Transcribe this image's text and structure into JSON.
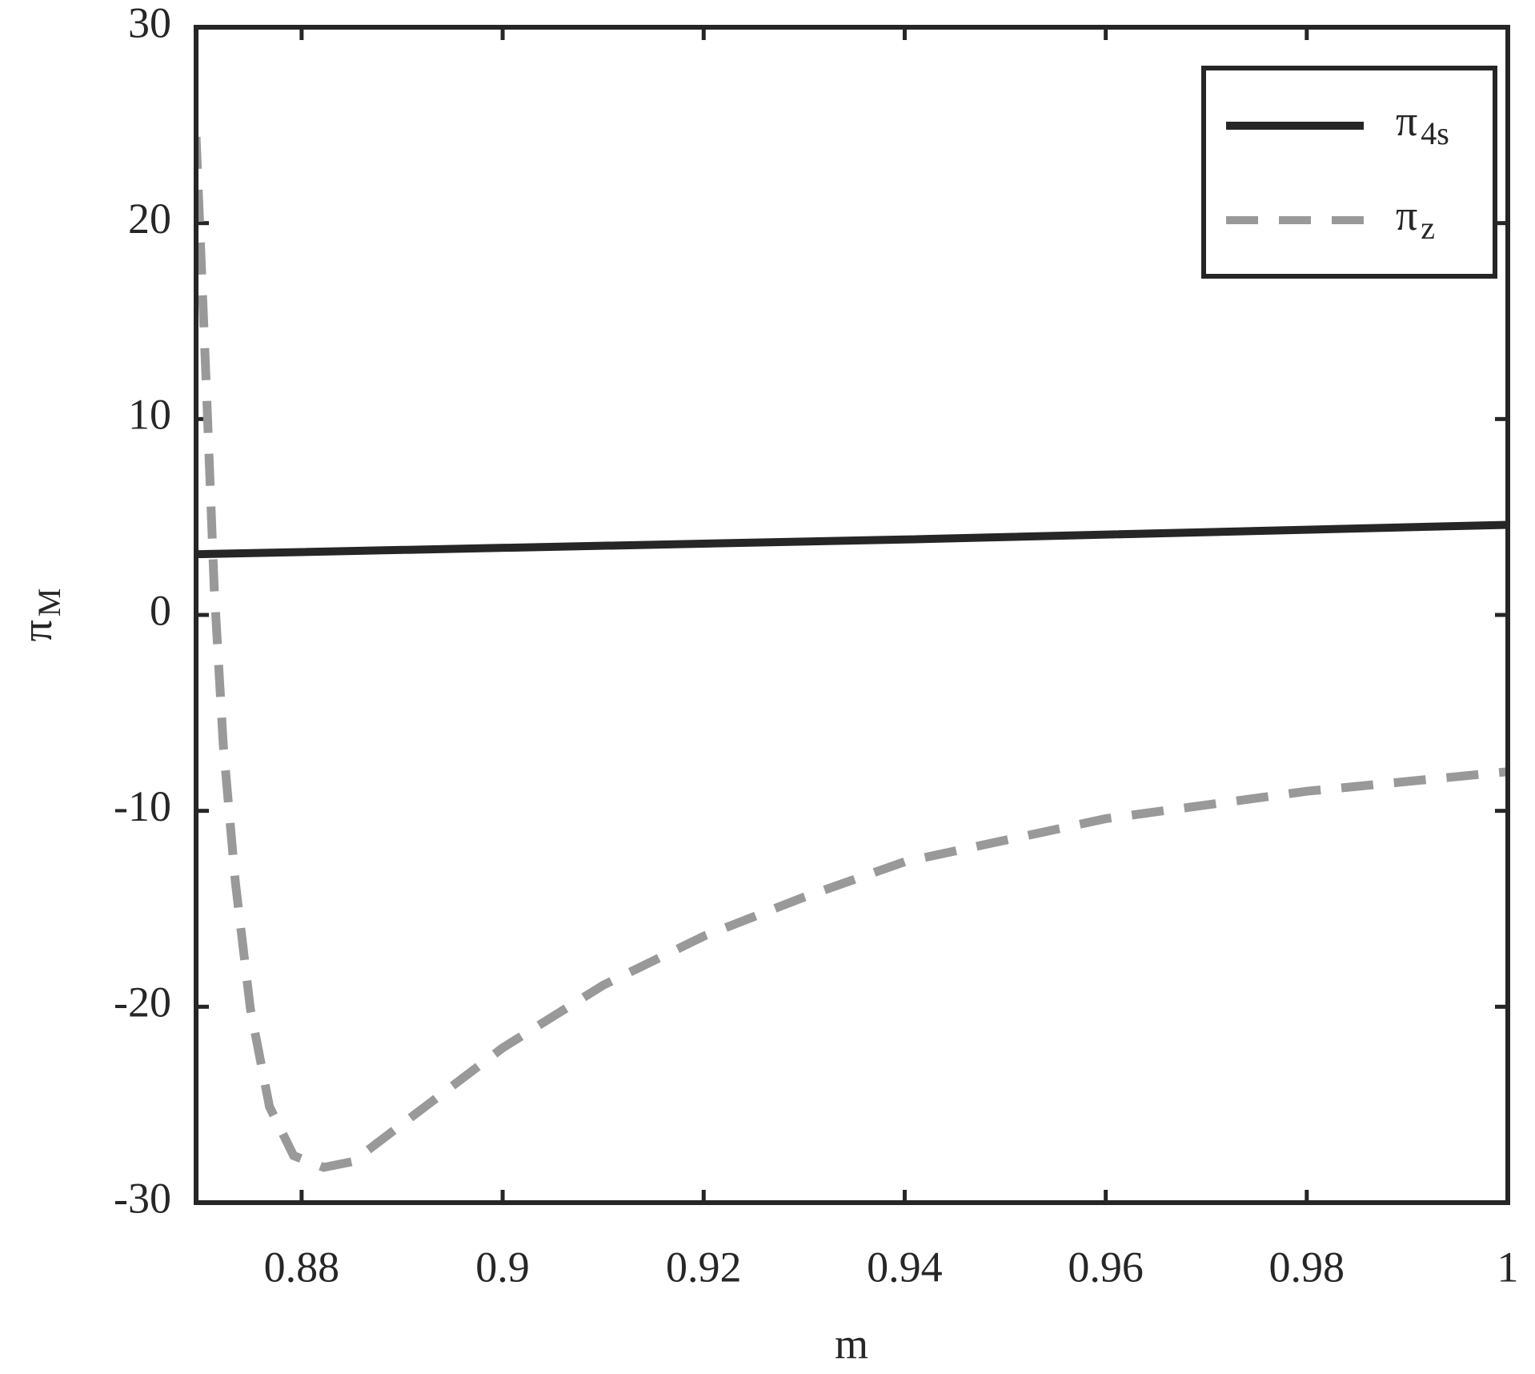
{
  "chart_data": {
    "type": "line",
    "x_label": "m",
    "y_label": "πM",
    "xlim": [
      0.8695,
      1
    ],
    "ylim": [
      -30,
      30
    ],
    "xticks": [
      0.88,
      0.9,
      0.92,
      0.94,
      0.96,
      0.98,
      1
    ],
    "yticks": [
      -30,
      -20,
      -10,
      0,
      10,
      20,
      30
    ],
    "legend": "upper right",
    "series": [
      {
        "name": "π4s",
        "color": "#262626",
        "style": "solid",
        "x": [
          0.8695,
          0.94,
          1
        ],
        "values": [
          3.1,
          3.85,
          4.6
        ]
      },
      {
        "name": "πz",
        "color": "#999999",
        "style": "dashed",
        "x": [
          0.8695,
          0.8705,
          0.8713,
          0.8722,
          0.8734,
          0.8749,
          0.8768,
          0.8792,
          0.8822,
          0.8851,
          0.891,
          0.9,
          0.91,
          0.92,
          0.93,
          0.94,
          0.96,
          0.98,
          1
        ],
        "values": [
          24.4,
          11.9,
          1.4,
          -6.6,
          -13.6,
          -20.1,
          -25.1,
          -27.6,
          -28.2,
          -27.9,
          -25.6,
          -22.1,
          -18.9,
          -16.4,
          -14.4,
          -12.6,
          -10.4,
          -9,
          -8
        ]
      }
    ]
  }
}
